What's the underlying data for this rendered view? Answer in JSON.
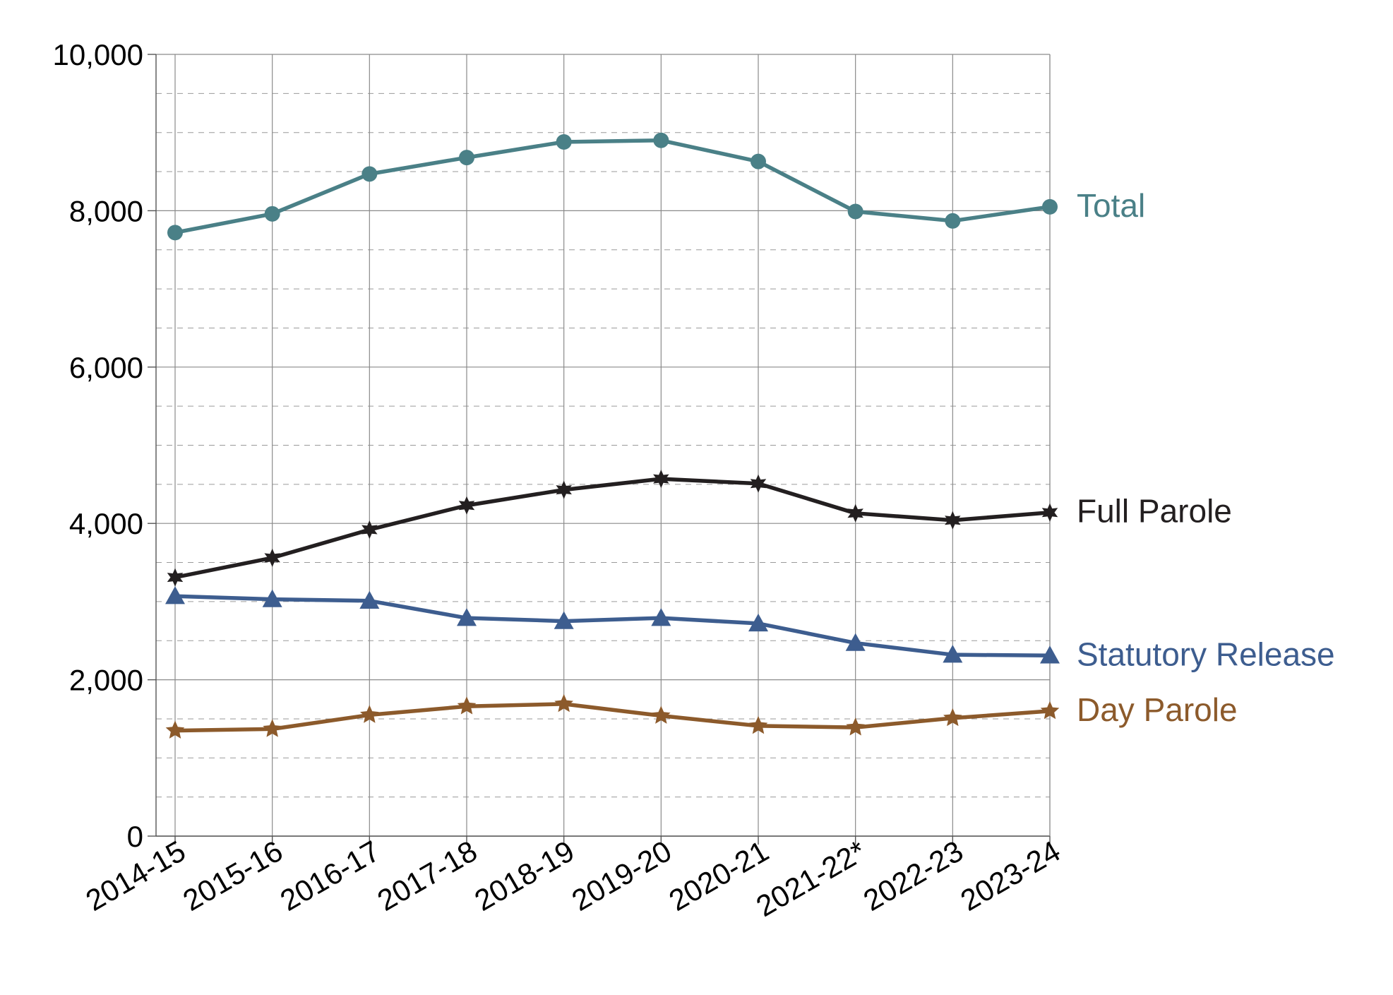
{
  "chart_data": {
    "type": "line",
    "title": "",
    "xlabel": "",
    "ylabel": "",
    "categories": [
      "2014-15",
      "2015-16",
      "2016-17",
      "2017-18",
      "2018-19",
      "2019-20",
      "2020-21",
      "2021-22*",
      "2022-23",
      "2023-24"
    ],
    "ylim": [
      0,
      10000
    ],
    "yticks": [
      "0",
      "2,000",
      "4,000",
      "6,000",
      "8,000",
      "10,000"
    ],
    "ytick_values": [
      0,
      2000,
      4000,
      6000,
      8000,
      10000
    ],
    "minor_step": 500,
    "grid": true,
    "legend": "inline-right",
    "series": [
      {
        "name": "Total",
        "color": "#4a8087",
        "marker": "circle",
        "values": [
          7720,
          7960,
          8470,
          8680,
          8880,
          8900,
          8630,
          7990,
          7870,
          8050
        ]
      },
      {
        "name": "Full Parole",
        "color": "#231f20",
        "marker": "star6",
        "values": [
          3310,
          3560,
          3920,
          4230,
          4430,
          4570,
          4510,
          4130,
          4040,
          4140
        ]
      },
      {
        "name": "Statutory Release",
        "color": "#3d5d8f",
        "marker": "triangle",
        "values": [
          3070,
          3030,
          3010,
          2790,
          2750,
          2790,
          2720,
          2470,
          2320,
          2310
        ]
      },
      {
        "name": "Day Parole",
        "color": "#8c5a2b",
        "marker": "star5",
        "values": [
          1350,
          1370,
          1550,
          1660,
          1690,
          1540,
          1410,
          1390,
          1510,
          1600
        ]
      }
    ]
  }
}
